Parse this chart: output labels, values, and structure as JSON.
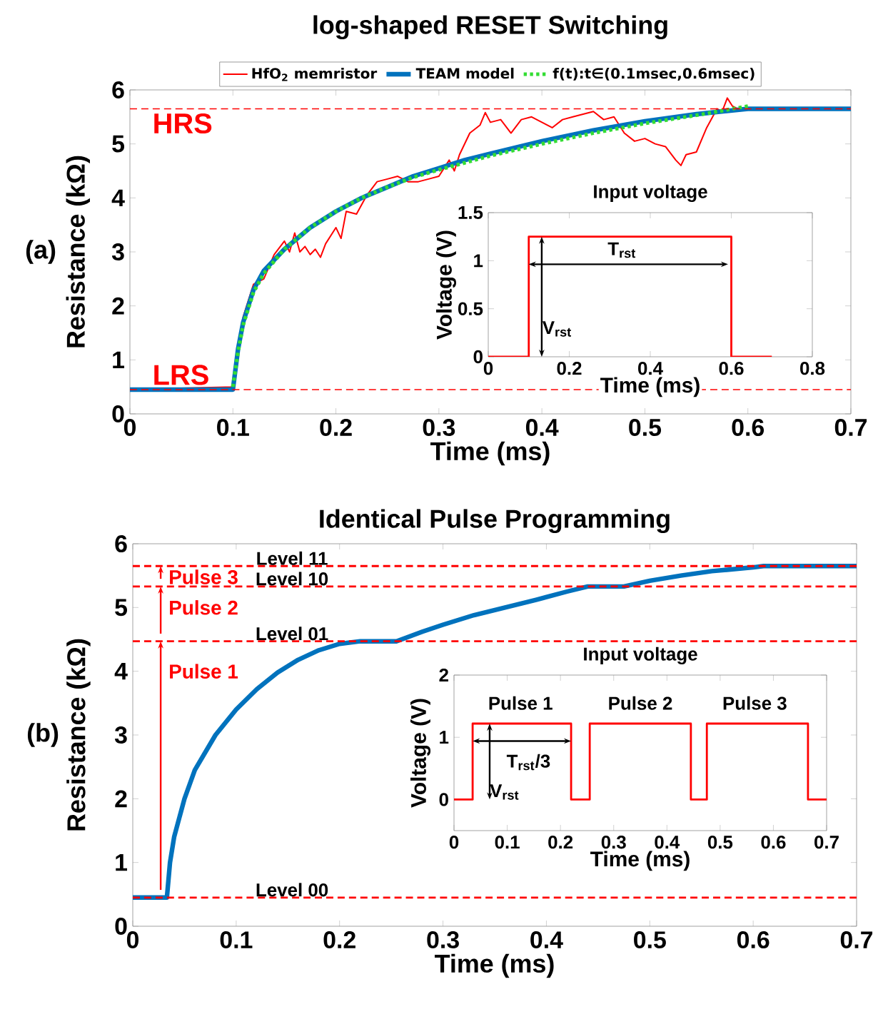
{
  "chart_data": [
    {
      "type": "line",
      "title": "log-shaped RESET Switching",
      "xlabel": "Time (ms)",
      "ylabel": "Resistance (kΩ)",
      "xlim": [
        0,
        0.7
      ],
      "ylim": [
        0,
        6
      ],
      "xticks": [
        0,
        0.1,
        0.2,
        0.3,
        0.4,
        0.5,
        0.6,
        0.7
      ],
      "yticks": [
        0,
        1,
        2,
        3,
        4,
        5,
        6
      ],
      "legend": "top",
      "series": [
        {
          "name": "HfO$_{2}$ memristor",
          "color": "#ff0000",
          "line_style": "solid",
          "x": [
            0,
            0.1,
            0.11,
            0.12,
            0.13,
            0.14,
            0.15,
            0.155,
            0.16,
            0.165,
            0.17,
            0.175,
            0.18,
            0.185,
            0.19,
            0.2,
            0.205,
            0.21,
            0.22,
            0.23,
            0.24,
            0.25,
            0.26,
            0.27,
            0.28,
            0.29,
            0.3,
            0.31,
            0.315,
            0.32,
            0.33,
            0.34,
            0.345,
            0.35,
            0.36,
            0.37,
            0.38,
            0.39,
            0.4,
            0.41,
            0.42,
            0.43,
            0.44,
            0.45,
            0.46,
            0.47,
            0.48,
            0.49,
            0.5,
            0.51,
            0.52,
            0.53,
            0.535,
            0.54,
            0.55,
            0.56,
            0.57,
            0.575,
            0.58,
            0.585,
            0.59
          ],
          "values": [
            0.45,
            0.5,
            1.8,
            2.4,
            2.5,
            2.95,
            3.2,
            3.0,
            3.35,
            3.0,
            3.1,
            2.95,
            3.05,
            2.9,
            3.15,
            3.45,
            3.25,
            3.75,
            3.7,
            4.05,
            4.3,
            4.35,
            4.4,
            4.3,
            4.3,
            4.35,
            4.4,
            4.7,
            4.5,
            4.8,
            5.2,
            5.35,
            5.58,
            5.4,
            5.45,
            5.2,
            5.45,
            5.5,
            5.4,
            5.3,
            5.45,
            5.5,
            5.55,
            5.6,
            5.45,
            5.5,
            5.2,
            5.05,
            5.1,
            5.0,
            4.95,
            4.7,
            4.6,
            4.8,
            4.85,
            5.3,
            5.65,
            5.6,
            5.85,
            5.7,
            5.65
          ]
        },
        {
          "name": "TEAM model",
          "color": "#0072bd",
          "line_style": "solid",
          "x": [
            0,
            0.1,
            0.105,
            0.11,
            0.12,
            0.13,
            0.15,
            0.175,
            0.2,
            0.225,
            0.25,
            0.275,
            0.3,
            0.325,
            0.35,
            0.4,
            0.45,
            0.5,
            0.55,
            0.6,
            0.7
          ],
          "values": [
            0.45,
            0.45,
            1.2,
            1.7,
            2.3,
            2.65,
            3.05,
            3.45,
            3.75,
            4.0,
            4.2,
            4.4,
            4.55,
            4.7,
            4.82,
            5.05,
            5.25,
            5.42,
            5.55,
            5.65,
            5.65
          ]
        },
        {
          "name": "f(t):t∈(0.1msec,0.6msec)",
          "color": "#33dd33",
          "line_style": "dotted",
          "x": [
            0.1,
            0.105,
            0.11,
            0.12,
            0.13,
            0.15,
            0.175,
            0.2,
            0.225,
            0.25,
            0.275,
            0.3,
            0.325,
            0.35,
            0.4,
            0.45,
            0.5,
            0.55,
            0.6
          ],
          "values": [
            0.5,
            1.15,
            1.65,
            2.25,
            2.6,
            3.05,
            3.45,
            3.75,
            4.0,
            4.2,
            4.38,
            4.52,
            4.65,
            4.78,
            5.0,
            5.2,
            5.38,
            5.53,
            5.7
          ]
        }
      ],
      "ref_lines": [
        {
          "axis": "y",
          "value": 5.65,
          "label": "HRS",
          "color": "#ff0000",
          "line_style": "dashed"
        },
        {
          "axis": "y",
          "value": 0.45,
          "label": "LRS",
          "color": "#ff0000",
          "line_style": "dashed"
        }
      ],
      "annotations": [
        "(a)"
      ]
    },
    {
      "type": "line",
      "title": "Input voltage",
      "xlabel": "Time (ms)",
      "ylabel": "Voltage (V)",
      "xlim": [
        0,
        0.8
      ],
      "ylim": [
        0,
        1.5
      ],
      "xticks": [
        0,
        0.2,
        0.4,
        0.6,
        0.8
      ],
      "yticks": [
        0,
        0.5,
        1,
        1.5
      ],
      "series": [
        {
          "color": "#ff0000",
          "x": [
            0,
            0.1,
            0.1,
            0.6,
            0.6,
            0.7
          ],
          "values": [
            0,
            0,
            1.25,
            1.25,
            0,
            0
          ]
        }
      ],
      "annotations": [
        "T$_{rst}$",
        "V$_{rst}$"
      ]
    },
    {
      "type": "line",
      "title": "Identical Pulse Programming",
      "xlabel": "Time (ms)",
      "ylabel": "Resistance (kΩ)",
      "xlim": [
        0,
        0.7
      ],
      "ylim": [
        0,
        6
      ],
      "xticks": [
        0,
        0.1,
        0.2,
        0.3,
        0.4,
        0.5,
        0.6,
        0.7
      ],
      "yticks": [
        0,
        1,
        2,
        3,
        4,
        5,
        6
      ],
      "series": [
        {
          "color": "#0072bd",
          "x": [
            0,
            0.033,
            0.036,
            0.04,
            0.05,
            0.06,
            0.08,
            0.1,
            0.12,
            0.14,
            0.16,
            0.18,
            0.2,
            0.22,
            0.255,
            0.28,
            0.3,
            0.33,
            0.36,
            0.39,
            0.42,
            0.44,
            0.475,
            0.5,
            0.53,
            0.56,
            0.6,
            0.61,
            0.7
          ],
          "values": [
            0.45,
            0.45,
            1.0,
            1.4,
            2.0,
            2.45,
            3.0,
            3.4,
            3.72,
            3.98,
            4.18,
            4.33,
            4.43,
            4.47,
            4.47,
            4.62,
            4.73,
            4.88,
            5.0,
            5.12,
            5.25,
            5.33,
            5.33,
            5.42,
            5.5,
            5.57,
            5.63,
            5.65,
            5.65
          ]
        }
      ],
      "ref_lines": [
        {
          "axis": "y",
          "value": 0.45,
          "label": "Level 00",
          "color": "#ff0000",
          "line_style": "dashed"
        },
        {
          "axis": "y",
          "value": 4.47,
          "label": "Level 01",
          "color": "#ff0000",
          "line_style": "dashed"
        },
        {
          "axis": "y",
          "value": 5.33,
          "label": "Level 10",
          "color": "#ff0000",
          "line_style": "dashed"
        },
        {
          "axis": "y",
          "value": 5.65,
          "label": "Level 11",
          "color": "#ff0000",
          "line_style": "dashed"
        }
      ],
      "annotations": [
        "(b)",
        "Pulse 1",
        "Pulse 2",
        "Pulse 3"
      ]
    },
    {
      "type": "line",
      "title": "Input voltage",
      "xlabel": "Time (ms)",
      "ylabel": "Voltage (V)",
      "xlim": [
        0,
        0.7
      ],
      "ylim": [
        -0.5,
        2
      ],
      "xticks": [
        0,
        0.1,
        0.2,
        0.3,
        0.4,
        0.5,
        0.6,
        0.7
      ],
      "yticks": [
        0,
        1,
        2
      ],
      "series": [
        {
          "color": "#ff0000",
          "x": [
            0,
            0.035,
            0.035,
            0.22,
            0.22,
            0.255,
            0.255,
            0.445,
            0.445,
            0.475,
            0.475,
            0.665,
            0.665,
            0.7
          ],
          "values": [
            0,
            0,
            1.22,
            1.22,
            0,
            0,
            1.22,
            1.22,
            0,
            0,
            1.22,
            1.22,
            0,
            0
          ]
        }
      ],
      "annotations": [
        "Pulse 1",
        "Pulse 2",
        "Pulse 3",
        {
          "text": "T$_{rst}$/3",
          "x": 0.22,
          "y": 0.94
        },
        "V$_{rst}$"
      ]
    }
  ]
}
